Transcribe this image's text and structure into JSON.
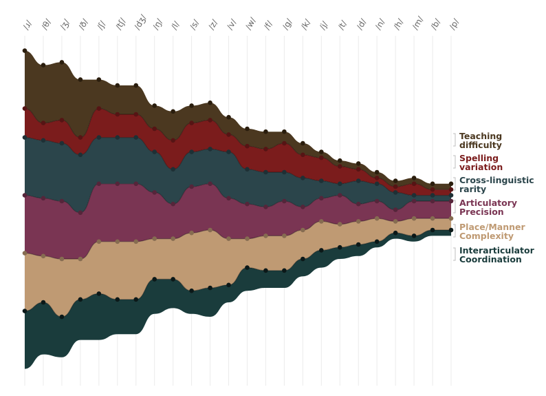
{
  "chart_data": {
    "type": "area",
    "stacking": "streamgraph",
    "x_position": "top",
    "legend_placement": "right, inline labels",
    "grid": true,
    "categories": [
      "/ɹ/",
      "/θ/",
      "/ʒ/",
      "/ð/",
      "/ʃ/",
      "/tʃ/",
      "/dʒ/",
      "/ŋ/",
      "/l/",
      "/s/",
      "/z/",
      "/v/",
      "/w/",
      "/f/",
      "/g/",
      "/k/",
      "/j/",
      "/t/",
      "/d/",
      "/n/",
      "/h/",
      "/m/",
      "/b/",
      "/p/"
    ],
    "series": [
      {
        "name": "Interarticulator Coordination",
        "color": "#1a3c3c",
        "values": [
          10,
          9,
          7,
          7,
          8,
          6,
          6,
          6,
          5,
          4,
          5,
          3,
          4,
          3,
          3,
          3,
          3,
          2,
          2,
          1,
          1,
          1,
          1,
          1
        ]
      },
      {
        "name": "Place/Manner Complexity",
        "color": "#bf9a73",
        "values": [
          10,
          8,
          10,
          7,
          9,
          10,
          10,
          7,
          7,
          10,
          10,
          8,
          5,
          6,
          6,
          5,
          5,
          4,
          4,
          4,
          2,
          3,
          2,
          2
        ]
      },
      {
        "name": "Articulatory Precision",
        "color": "#7a3553",
        "values": [
          10,
          10,
          10,
          8,
          10,
          10,
          10,
          8,
          6,
          8,
          8,
          7,
          6,
          5,
          6,
          4,
          4,
          5,
          3,
          3,
          2,
          3,
          3,
          3
        ]
      },
      {
        "name": "Cross-linguistic rarity",
        "color": "#2b454b",
        "values": [
          10,
          10,
          10,
          10,
          8,
          8,
          8,
          7,
          6,
          6,
          6,
          8,
          6,
          6,
          5,
          5,
          3,
          2,
          4,
          3,
          3,
          1,
          1,
          1
        ]
      },
      {
        "name": "Spelling variation",
        "color": "#7b1c1c",
        "values": [
          5,
          3,
          4,
          3,
          5,
          4,
          4,
          4,
          5,
          5,
          5,
          3,
          4,
          4,
          5,
          4,
          4,
          3,
          2,
          1,
          1,
          2,
          1,
          1
        ]
      },
      {
        "name": "Teaching difficulty",
        "color": "#4b3820",
        "values": [
          10,
          10,
          10,
          10,
          5,
          5,
          5,
          4,
          5,
          3,
          3,
          3,
          3,
          3,
          2,
          2,
          1,
          1,
          1,
          1,
          1,
          1,
          1,
          1
        ]
      }
    ]
  }
}
